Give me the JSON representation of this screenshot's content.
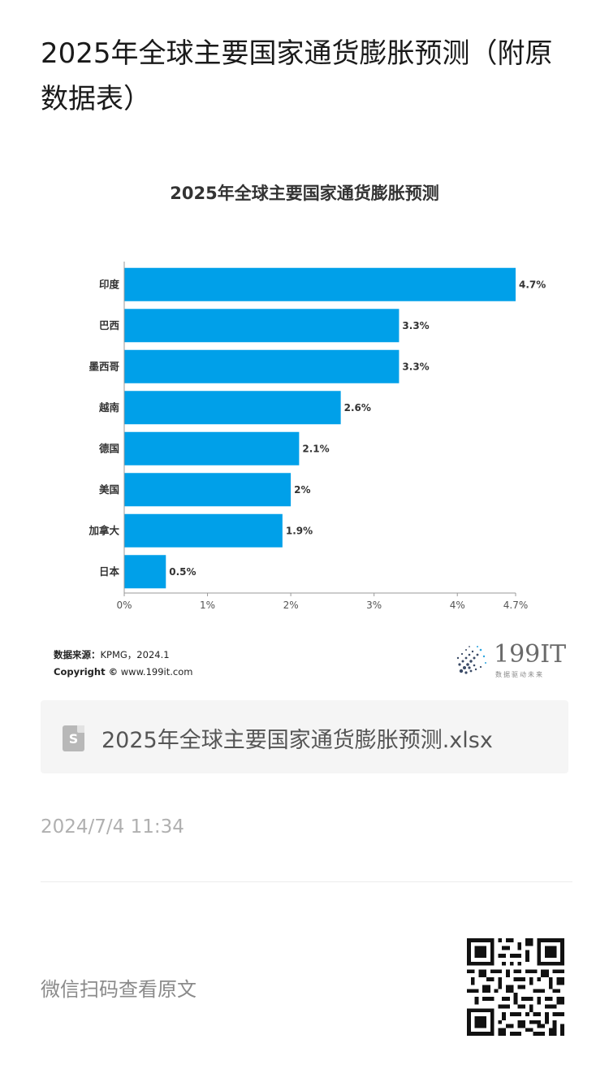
{
  "article": {
    "title": "2025年全球主要国家通货膨胀预测（附原数据表）"
  },
  "chart_data": {
    "type": "bar",
    "orientation": "horizontal",
    "title": "2025年全球主要国家通货膨胀预测",
    "categories": [
      "印度",
      "巴西",
      "墨西哥",
      "越南",
      "德国",
      "美国",
      "加拿大",
      "日本"
    ],
    "values": [
      4.7,
      3.3,
      3.3,
      2.6,
      2.1,
      2.0,
      1.9,
      0.5
    ],
    "value_labels": [
      "4.7%",
      "3.3%",
      "3.3%",
      "2.6%",
      "2.1%",
      "2%",
      "1.9%",
      "0.5%"
    ],
    "xlim": [
      0,
      4.7
    ],
    "x_ticks": [
      0,
      1,
      2,
      3,
      4,
      4.7
    ],
    "x_tick_labels": [
      "0%",
      "1%",
      "2%",
      "3%",
      "4%",
      "4.7%"
    ],
    "xlabel": "",
    "ylabel": "",
    "grid": false,
    "legend": "none",
    "bar_color": "#00a0e9"
  },
  "source": {
    "label": "数据来源：",
    "value": "KPMG，2024.1",
    "copyright_label": "Copyright ©",
    "copyright_value": "www.199it.com"
  },
  "logo": {
    "text": "199IT",
    "tagline": "数据驱动未来"
  },
  "attachment": {
    "icon": "spreadsheet-file-icon",
    "icon_letter": "S",
    "file_name": "2025年全球主要国家通货膨胀预测.xlsx"
  },
  "timestamp": "2024/7/4 11:34",
  "footer": {
    "wechat_text": "微信扫码查看原文",
    "qr_icon": "qr-code-icon"
  }
}
